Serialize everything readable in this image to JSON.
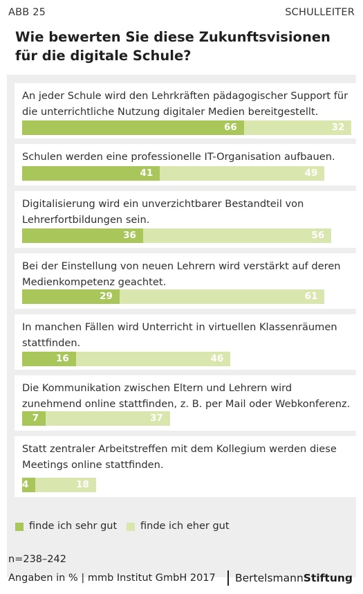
{
  "header": {
    "figure_label": "ABB 25",
    "audience": "SCHULLEITER"
  },
  "title": "Wie bewerten Sie diese Zukunftsvisionen für die digitale Schule?",
  "chart_data": {
    "type": "bar",
    "stacked": true,
    "orientation": "horizontal",
    "title": "Wie bewerten Sie diese Zukunftsvisionen für die digitale Schule?",
    "categories": [
      "An jeder Schule wird den Lehrkräften pädagogischer Support für die unterrichtliche Nutzung digitaler Medien bereitgestellt.",
      "Schulen werden eine professionelle IT-Organisation aufbauen.",
      "Digitalisierung wird ein unverzichtbarer Bestandteil von Lehrerfortbildungen sein.",
      "Bei der Einstellung von neuen Lehrern wird verstärkt auf deren Medienkompetenz geachtet.",
      "In manchen Fällen wird Unterricht in virtuellen Klassenräumen stattfinden.",
      "Die Kommunikation zwischen Eltern und Lehrern wird zunehmend online stattfinden, z. B. per Mail oder Webkonferenz.",
      "Statt zentraler Arbeitstreffen mit dem Kollegium werden diese Meetings online stattfinden."
    ],
    "series": [
      {
        "name": "finde ich sehr gut",
        "values": [
          66,
          41,
          36,
          29,
          16,
          7,
          4
        ],
        "color": "#a8c65a"
      },
      {
        "name": "finde ich eher gut",
        "values": [
          32,
          49,
          56,
          61,
          46,
          37,
          18
        ],
        "color": "#d9e6ad"
      }
    ],
    "xlim": [
      0,
      100
    ],
    "unit": "%",
    "legend_position": "bottom-left"
  },
  "footer": {
    "sample": "n=238–242",
    "source": "Angaben in % | mmb Institut GmbH 2017",
    "logo_light": "Bertelsmann",
    "logo_bold": "Stiftung"
  }
}
